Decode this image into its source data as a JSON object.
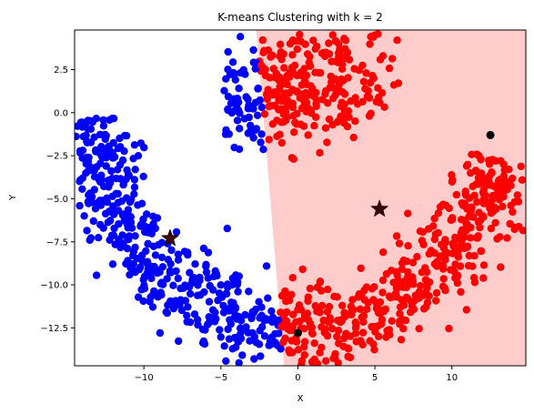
{
  "chart_data": {
    "type": "scatter",
    "title": "K-means Clustering with k = 2",
    "xlabel": "X",
    "ylabel": "Y",
    "xlim": [
      -14.5,
      14.8
    ],
    "ylim": [
      -14.7,
      4.8
    ],
    "xticks": [
      -10,
      -5,
      0,
      5,
      10
    ],
    "xtick_labels": [
      "−10",
      "−5",
      "0",
      "5",
      "10"
    ],
    "yticks": [
      2.5,
      0.0,
      -2.5,
      -5.0,
      -7.5,
      -10.0,
      -12.5
    ],
    "ytick_labels": [
      "2.5",
      "0.0",
      "−2.5",
      "−5.0",
      "−7.5",
      "−10.0",
      "−12.5"
    ],
    "grid": false,
    "decision_boundary": [
      [
        -2.7,
        4.8
      ],
      [
        -0.9,
        -14.7
      ]
    ],
    "region_colors": {
      "left": "#ffffff",
      "right": "#ffcccc"
    },
    "series": [
      {
        "color": "#0000ff",
        "description_points": "arc and upper-left blob, approximate sample"
      },
      {
        "color": "#ff0000",
        "description_points": "upper blob and right arc, approximate sample"
      }
    ],
    "centroids": [
      {
        "x": -8.3,
        "y": -7.3
      },
      {
        "x": 5.3,
        "y": -5.6
      }
    ],
    "black_points": [
      {
        "x": 12.5,
        "y": -1.3
      },
      {
        "x": 0.0,
        "y": -12.8
      }
    ]
  }
}
